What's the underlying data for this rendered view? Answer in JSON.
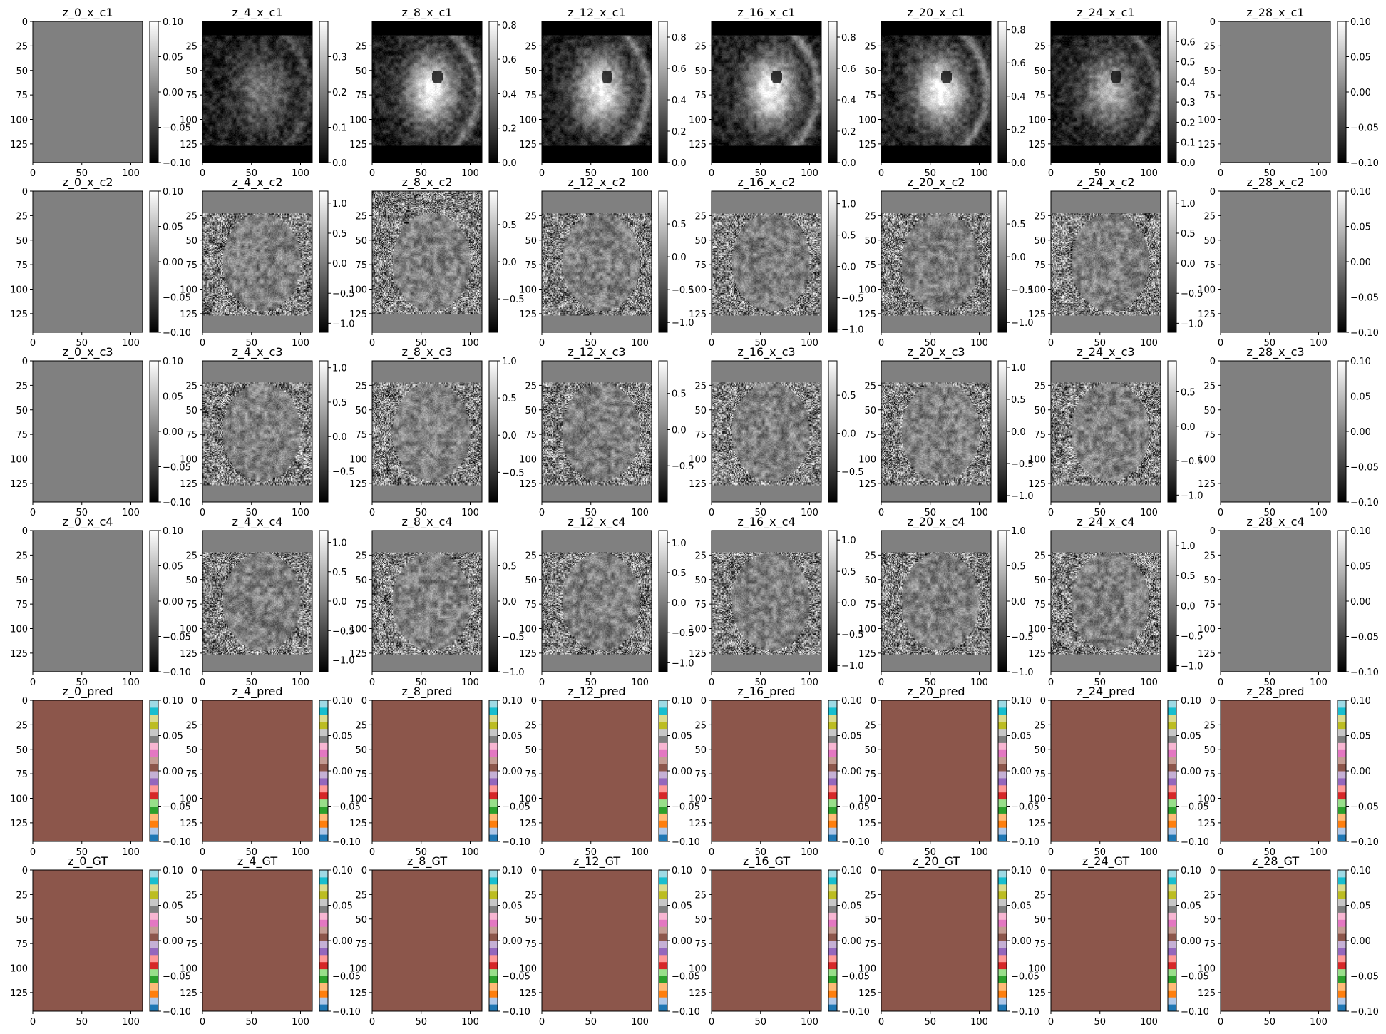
{
  "figure": {
    "row_order": [
      "x_c1",
      "x_c2",
      "x_c3",
      "x_c4",
      "pred",
      "GT"
    ],
    "col_order": [
      "z_0",
      "z_4",
      "z_8",
      "z_12",
      "z_16",
      "z_20",
      "z_24",
      "z_28"
    ]
  },
  "chart_data": {
    "type": "heatmap",
    "image_shape": {
      "rows": 144,
      "cols": 112
    },
    "x_ticks": [
      "0",
      "50",
      "100"
    ],
    "y_ticks": [
      "25",
      "50",
      "75",
      "100",
      "125"
    ],
    "y_ticks_with_zero": [
      "0",
      "25",
      "50",
      "75",
      "100",
      "125"
    ],
    "cmaps": {
      "gray": "grayscale",
      "tab20": "segmentation labels"
    },
    "tab20_colors": [
      "#1f77b4",
      "#aec7e8",
      "#ff7f0e",
      "#ffbb78",
      "#2ca02c",
      "#98df8a",
      "#d62728",
      "#ff9896",
      "#9467bd",
      "#c5b0d5",
      "#8c564b",
      "#c49c94",
      "#e377c2",
      "#f7b6d2",
      "#7f7f7f",
      "#c7c7c7",
      "#bcbd22",
      "#dbdb8d",
      "#17becf",
      "#9edae5"
    ],
    "rows": [
      {
        "key": "x_c1",
        "panels": [
          {
            "title": "z_0_x_c1",
            "content": "constant",
            "value": 0.0,
            "vmin": -0.1,
            "vmax": 0.1,
            "cbar_ticks": [
              "0.10",
              "0.05",
              "0.00",
              "−0.05",
              "−0.10"
            ],
            "cmap": "gray"
          },
          {
            "title": "z_4_x_c1",
            "content": "mri-magnitude",
            "vmin": 0.0,
            "vmax": 0.4,
            "cbar_ticks": [
              "0.3",
              "0.2",
              "0.1",
              "0.0"
            ],
            "cmap": "gray"
          },
          {
            "title": "z_8_x_c1",
            "content": "mri-magnitude",
            "vmin": 0.0,
            "vmax": 0.82,
            "cbar_ticks": [
              "0.8",
              "0.6",
              "0.4",
              "0.2",
              "0.0"
            ],
            "cmap": "gray"
          },
          {
            "title": "z_12_x_c1",
            "content": "mri-magnitude",
            "vmin": 0.0,
            "vmax": 0.9,
            "cbar_ticks": [
              "0.8",
              "0.6",
              "0.4",
              "0.2",
              "0.0"
            ],
            "cmap": "gray"
          },
          {
            "title": "z_16_x_c1",
            "content": "mri-magnitude",
            "vmin": 0.0,
            "vmax": 0.9,
            "cbar_ticks": [
              "0.8",
              "0.6",
              "0.4",
              "0.2",
              "0.0"
            ],
            "cmap": "gray"
          },
          {
            "title": "z_20_x_c1",
            "content": "mri-magnitude",
            "vmin": 0.0,
            "vmax": 0.85,
            "cbar_ticks": [
              "0.8",
              "0.6",
              "0.4",
              "0.2",
              "0.0"
            ],
            "cmap": "gray"
          },
          {
            "title": "z_24_x_c1",
            "content": "mri-magnitude",
            "vmin": 0.0,
            "vmax": 0.7,
            "cbar_ticks": [
              "0.6",
              "0.5",
              "0.4",
              "0.3",
              "0.2",
              "0.1",
              "0.0"
            ],
            "cmap": "gray"
          },
          {
            "title": "z_28_x_c1",
            "content": "constant",
            "value": 0.0,
            "vmin": -0.1,
            "vmax": 0.1,
            "cbar_ticks": [
              "0.10",
              "0.05",
              "0.00",
              "−0.05",
              "−0.10"
            ],
            "cmap": "gray"
          }
        ]
      },
      {
        "key": "x_c2",
        "panels": [
          {
            "title": "z_0_x_c2",
            "content": "constant",
            "value": 0.0,
            "vmin": -0.1,
            "vmax": 0.1,
            "cbar_ticks": [
              "0.10",
              "0.05",
              "0.00",
              "−0.05",
              "−0.10"
            ],
            "cmap": "gray"
          },
          {
            "title": "z_4_x_c2",
            "content": "mri-phase",
            "vmin": -1.15,
            "vmax": 1.2,
            "cbar_ticks": [
              "1.0",
              "0.5",
              "0.0",
              "−0.5",
              "−1.0"
            ],
            "cmap": "gray"
          },
          {
            "title": "z_8_x_c2",
            "content": "mri-phase",
            "vmin": -0.95,
            "vmax": 0.95,
            "cbar_ticks": [
              "0.5",
              "0.0",
              "−0.5"
            ],
            "cmap": "gray"
          },
          {
            "title": "z_12_x_c2",
            "content": "mri-phase",
            "vmin": -1.15,
            "vmax": 1.0,
            "cbar_ticks": [
              "0.5",
              "0.0",
              "−0.5",
              "−1.0"
            ],
            "cmap": "gray"
          },
          {
            "title": "z_16_x_c2",
            "content": "mri-phase",
            "vmin": -1.05,
            "vmax": 1.2,
            "cbar_ticks": [
              "1.0",
              "0.5",
              "0.0",
              "−0.5",
              "−1.0"
            ],
            "cmap": "gray"
          },
          {
            "title": "z_20_x_c2",
            "content": "mri-phase",
            "vmin": -1.15,
            "vmax": 1.0,
            "cbar_ticks": [
              "0.5",
              "0.0",
              "−0.5",
              "−1.0"
            ],
            "cmap": "gray"
          },
          {
            "title": "z_24_x_c2",
            "content": "mri-phase",
            "vmin": -1.15,
            "vmax": 1.2,
            "cbar_ticks": [
              "1.0",
              "0.5",
              "0.0",
              "−0.5",
              "−1.0"
            ],
            "cmap": "gray"
          },
          {
            "title": "z_28_x_c2",
            "content": "constant",
            "value": 0.0,
            "vmin": -0.1,
            "vmax": 0.1,
            "cbar_ticks": [
              "0.10",
              "0.05",
              "0.00",
              "−0.05",
              "−0.10"
            ],
            "cmap": "gray"
          }
        ]
      },
      {
        "key": "x_c3",
        "panels": [
          {
            "title": "z_0_x_c3",
            "content": "constant",
            "value": 0.0,
            "vmin": -0.1,
            "vmax": 0.1,
            "cbar_ticks": [
              "0.10",
              "0.05",
              "0.00",
              "−0.05",
              "−0.10"
            ],
            "cmap": "gray"
          },
          {
            "title": "z_4_x_c3",
            "content": "mri-phase",
            "vmin": -0.95,
            "vmax": 1.1,
            "cbar_ticks": [
              "1.0",
              "0.5",
              "0.0",
              "−0.5"
            ],
            "cmap": "gray"
          },
          {
            "title": "z_8_x_c3",
            "content": "mri-phase",
            "vmin": -0.9,
            "vmax": 1.0,
            "cbar_ticks": [
              "1.0",
              "0.5",
              "0.0",
              "−0.5"
            ],
            "cmap": "gray"
          },
          {
            "title": "z_12_x_c3",
            "content": "mri-phase",
            "vmin": -1.0,
            "vmax": 0.95,
            "cbar_ticks": [
              "0.5",
              "0.0",
              "−0.5"
            ],
            "cmap": "gray"
          },
          {
            "title": "z_16_x_c3",
            "content": "mri-phase",
            "vmin": -0.9,
            "vmax": 0.95,
            "cbar_ticks": [
              "0.5",
              "0.0",
              "−0.5"
            ],
            "cmap": "gray"
          },
          {
            "title": "z_20_x_c3",
            "content": "mri-phase",
            "vmin": -1.1,
            "vmax": 1.1,
            "cbar_ticks": [
              "1.0",
              "0.5",
              "0.0",
              "−0.5",
              "−1.0"
            ],
            "cmap": "gray"
          },
          {
            "title": "z_24_x_c3",
            "content": "mri-phase",
            "vmin": -1.1,
            "vmax": 0.95,
            "cbar_ticks": [
              "0.5",
              "0.0",
              "−0.5",
              "−1.0"
            ],
            "cmap": "gray"
          },
          {
            "title": "z_28_x_c3",
            "content": "constant",
            "value": 0.0,
            "vmin": -0.1,
            "vmax": 0.1,
            "cbar_ticks": [
              "0.10",
              "0.05",
              "0.00",
              "−0.05",
              "−0.10"
            ],
            "cmap": "gray"
          }
        ]
      },
      {
        "key": "x_c4",
        "panels": [
          {
            "title": "z_0_x_c4",
            "content": "constant",
            "value": 0.0,
            "vmin": -0.1,
            "vmax": 0.1,
            "cbar_ticks": [
              "0.10",
              "0.05",
              "0.00",
              "−0.05",
              "−0.10"
            ],
            "cmap": "gray"
          },
          {
            "title": "z_4_x_c4",
            "content": "mri-phase",
            "vmin": -1.2,
            "vmax": 1.2,
            "cbar_ticks": [
              "1.0",
              "0.5",
              "0.0",
              "−0.5",
              "−1.0"
            ],
            "cmap": "gray"
          },
          {
            "title": "z_8_x_c4",
            "content": "mri-phase",
            "vmin": -1.0,
            "vmax": 1.0,
            "cbar_ticks": [
              "0.5",
              "0.0",
              "−0.5",
              "−1.0"
            ],
            "cmap": "gray"
          },
          {
            "title": "z_12_x_c4",
            "content": "mri-phase",
            "vmin": -1.15,
            "vmax": 1.2,
            "cbar_ticks": [
              "1.0",
              "0.5",
              "0.0",
              "−0.5",
              "−1.0"
            ],
            "cmap": "gray"
          },
          {
            "title": "z_16_x_c4",
            "content": "mri-phase",
            "vmin": -1.1,
            "vmax": 1.15,
            "cbar_ticks": [
              "1.0",
              "0.5",
              "0.0",
              "−0.5",
              "−1.0"
            ],
            "cmap": "gray"
          },
          {
            "title": "z_20_x_c4",
            "content": "mri-phase",
            "vmin": -1.0,
            "vmax": 1.0,
            "cbar_ticks": [
              "1.0",
              "0.5",
              "0.0",
              "−0.5",
              "−1.0"
            ],
            "cmap": "gray"
          },
          {
            "title": "z_24_x_c4",
            "content": "mri-phase",
            "vmin": -1.1,
            "vmax": 1.25,
            "cbar_ticks": [
              "1.0",
              "0.5",
              "0.0",
              "−0.5",
              "−1.0"
            ],
            "cmap": "gray"
          },
          {
            "title": "z_28_x_c4",
            "content": "constant",
            "value": 0.0,
            "vmin": -0.1,
            "vmax": 0.1,
            "cbar_ticks": [
              "0.10",
              "0.05",
              "0.00",
              "−0.05",
              "−0.10"
            ],
            "cmap": "gray"
          }
        ]
      },
      {
        "key": "pred",
        "panels": [
          {
            "title": "z_0_pred",
            "content": "constant-label",
            "label_color": "#8c564b",
            "vmin": -0.1,
            "vmax": 0.1,
            "cbar_ticks": [
              "0.10",
              "0.05",
              "0.00",
              "−0.05",
              "−0.10"
            ],
            "cmap": "tab20"
          },
          {
            "title": "z_4_pred",
            "content": "constant-label",
            "label_color": "#8c564b",
            "vmin": -0.1,
            "vmax": 0.1,
            "cbar_ticks": [
              "0.10",
              "0.05",
              "0.00",
              "−0.05",
              "−0.10"
            ],
            "cmap": "tab20"
          },
          {
            "title": "z_8_pred",
            "content": "constant-label",
            "label_color": "#8c564b",
            "vmin": -0.1,
            "vmax": 0.1,
            "cbar_ticks": [
              "0.10",
              "0.05",
              "0.00",
              "−0.05",
              "−0.10"
            ],
            "cmap": "tab20"
          },
          {
            "title": "z_12_pred",
            "content": "constant-label",
            "label_color": "#8c564b",
            "vmin": -0.1,
            "vmax": 0.1,
            "cbar_ticks": [
              "0.10",
              "0.05",
              "0.00",
              "−0.05",
              "−0.10"
            ],
            "cmap": "tab20"
          },
          {
            "title": "z_16_pred",
            "content": "constant-label",
            "label_color": "#8c564b",
            "vmin": -0.1,
            "vmax": 0.1,
            "cbar_ticks": [
              "0.10",
              "0.05",
              "0.00",
              "−0.05",
              "−0.10"
            ],
            "cmap": "tab20"
          },
          {
            "title": "z_20_pred",
            "content": "constant-label",
            "label_color": "#8c564b",
            "vmin": -0.1,
            "vmax": 0.1,
            "cbar_ticks": [
              "0.10",
              "0.05",
              "0.00",
              "−0.05",
              "−0.10"
            ],
            "cmap": "tab20"
          },
          {
            "title": "z_24_pred",
            "content": "constant-label",
            "label_color": "#8c564b",
            "vmin": -0.1,
            "vmax": 0.1,
            "cbar_ticks": [
              "0.10",
              "0.05",
              "0.00",
              "−0.05",
              "−0.10"
            ],
            "cmap": "tab20"
          },
          {
            "title": "z_28_pred",
            "content": "constant-label",
            "label_color": "#8c564b",
            "vmin": -0.1,
            "vmax": 0.1,
            "cbar_ticks": [
              "0.10",
              "0.05",
              "0.00",
              "−0.05",
              "−0.10"
            ],
            "cmap": "tab20"
          }
        ]
      },
      {
        "key": "GT",
        "panels": [
          {
            "title": "z_0_GT",
            "content": "constant-label",
            "label_color": "#8c564b",
            "vmin": -0.1,
            "vmax": 0.1,
            "cbar_ticks": [
              "0.10",
              "0.05",
              "0.00",
              "−0.05",
              "−0.10"
            ],
            "cmap": "tab20"
          },
          {
            "title": "z_4_GT",
            "content": "constant-label",
            "label_color": "#8c564b",
            "vmin": -0.1,
            "vmax": 0.1,
            "cbar_ticks": [
              "0.10",
              "0.05",
              "0.00",
              "−0.05",
              "−0.10"
            ],
            "cmap": "tab20"
          },
          {
            "title": "z_8_GT",
            "content": "constant-label",
            "label_color": "#8c564b",
            "vmin": -0.1,
            "vmax": 0.1,
            "cbar_ticks": [
              "0.10",
              "0.05",
              "0.00",
              "−0.05",
              "−0.10"
            ],
            "cmap": "tab20"
          },
          {
            "title": "z_12_GT",
            "content": "constant-label",
            "label_color": "#8c564b",
            "vmin": -0.1,
            "vmax": 0.1,
            "cbar_ticks": [
              "0.10",
              "0.05",
              "0.00",
              "−0.05",
              "−0.10"
            ],
            "cmap": "tab20"
          },
          {
            "title": "z_16_GT",
            "content": "constant-label",
            "label_color": "#8c564b",
            "vmin": -0.1,
            "vmax": 0.1,
            "cbar_ticks": [
              "0.10",
              "0.05",
              "0.00",
              "−0.05",
              "−0.10"
            ],
            "cmap": "tab20"
          },
          {
            "title": "z_20_GT",
            "content": "constant-label",
            "label_color": "#8c564b",
            "vmin": -0.1,
            "vmax": 0.1,
            "cbar_ticks": [
              "0.10",
              "0.05",
              "0.00",
              "−0.05",
              "−0.10"
            ],
            "cmap": "tab20"
          },
          {
            "title": "z_24_GT",
            "content": "constant-label",
            "label_color": "#8c564b",
            "vmin": -0.1,
            "vmax": 0.1,
            "cbar_ticks": [
              "0.10",
              "0.05",
              "0.00",
              "−0.05",
              "−0.10"
            ],
            "cmap": "tab20"
          },
          {
            "title": "z_28_GT",
            "content": "constant-label",
            "label_color": "#8c564b",
            "vmin": -0.1,
            "vmax": 0.1,
            "cbar_ticks": [
              "0.10",
              "0.05",
              "0.00",
              "−0.05",
              "−0.10"
            ],
            "cmap": "tab20"
          }
        ]
      }
    ]
  }
}
